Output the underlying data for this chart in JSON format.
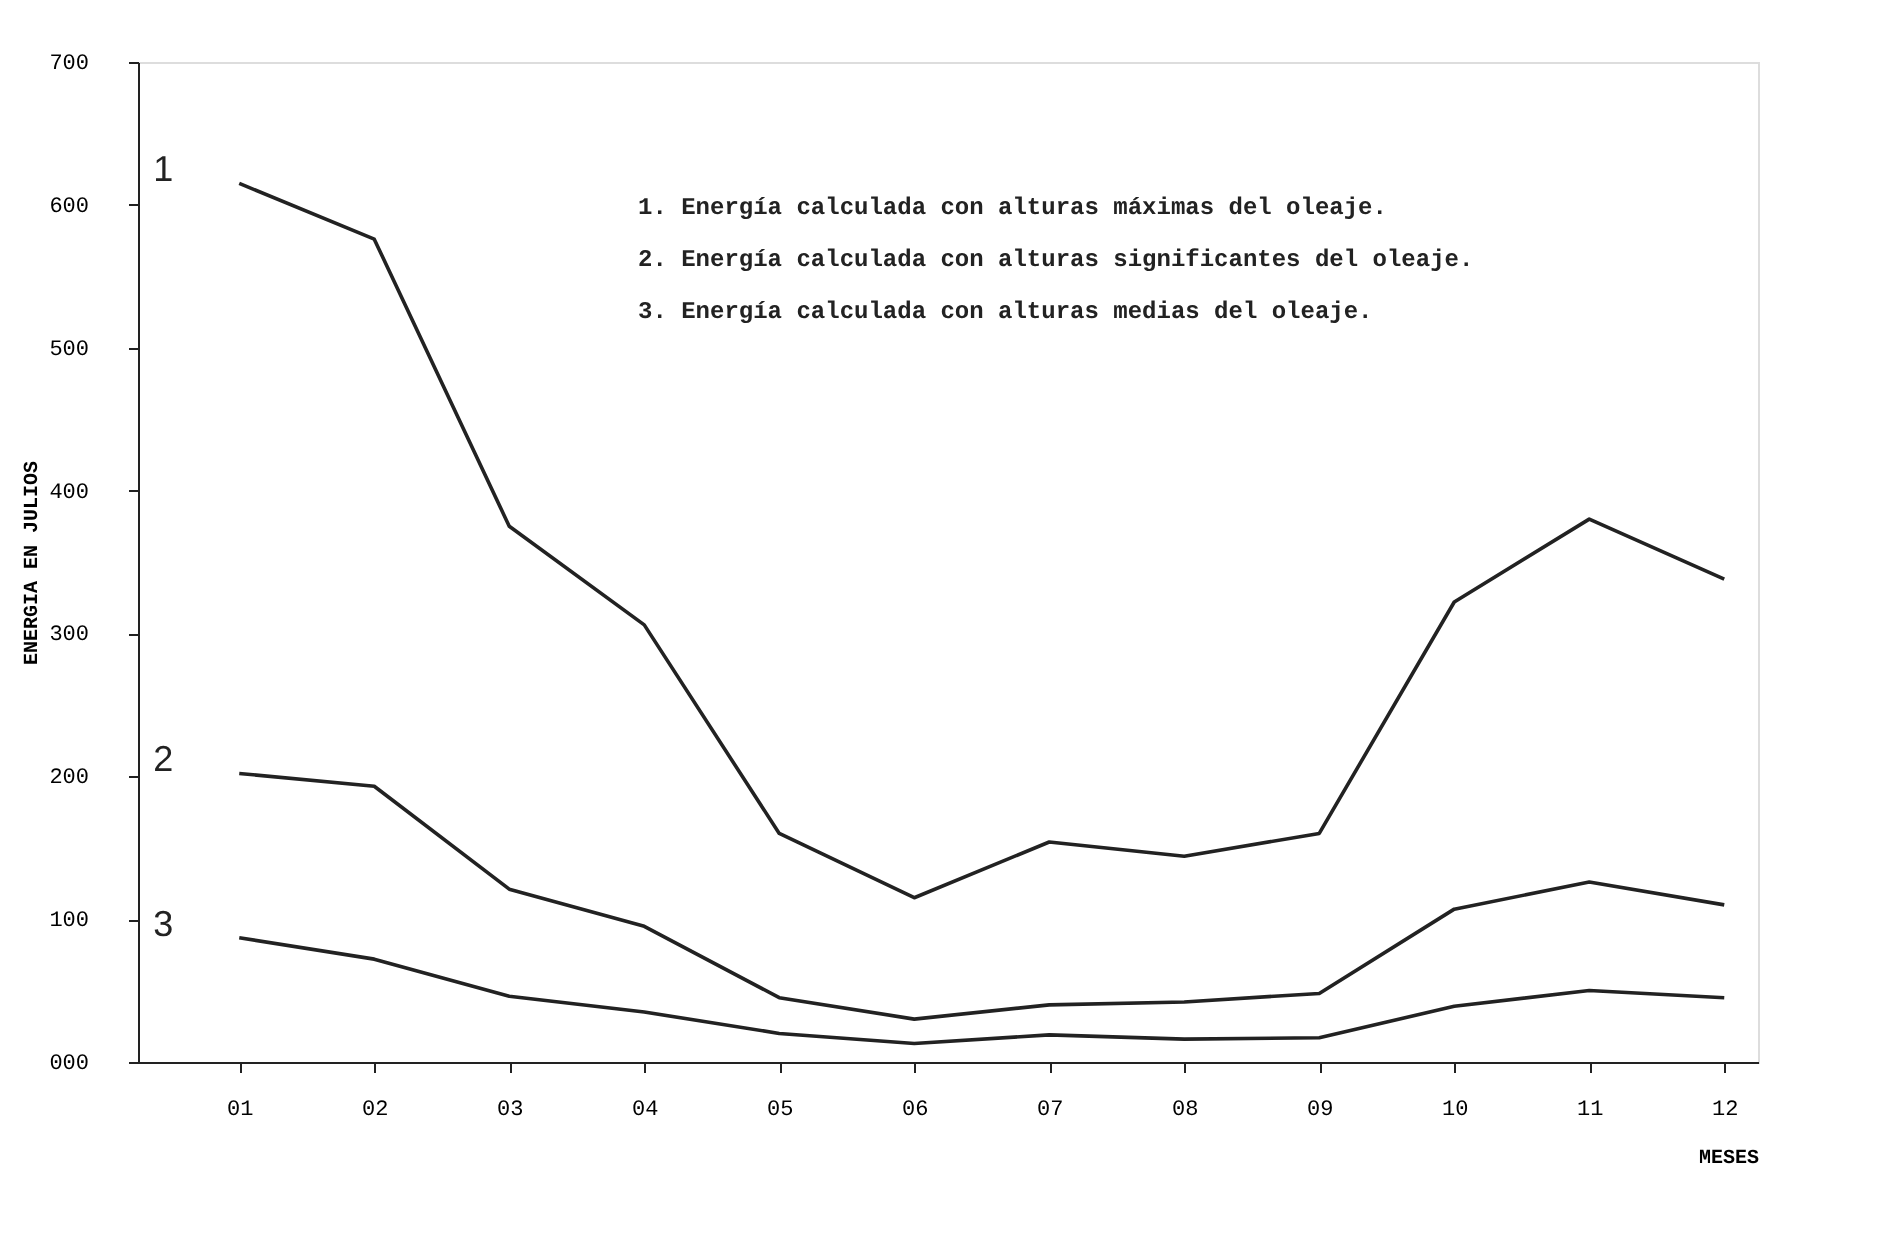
{
  "chart_data": {
    "type": "line",
    "categories": [
      "01",
      "02",
      "03",
      "04",
      "05",
      "06",
      "07",
      "08",
      "09",
      "10",
      "11",
      "12"
    ],
    "series": [
      {
        "name": "1",
        "color": "#222222",
        "values": [
          615,
          576,
          375,
          306,
          160,
          115,
          154,
          144,
          160,
          322,
          380,
          338
        ]
      },
      {
        "name": "2",
        "color": "#222222",
        "values": [
          202,
          193,
          121,
          95,
          45,
          30,
          40,
          42,
          48,
          107,
          126,
          110
        ]
      },
      {
        "name": "3",
        "color": "#222222",
        "values": [
          87,
          72,
          46,
          35,
          20,
          13,
          19,
          16,
          17,
          39,
          50,
          45
        ]
      }
    ],
    "ylim": [
      0,
      700
    ],
    "yticks": [
      {
        "value": 0,
        "label": "000"
      },
      100,
      200,
      300,
      400,
      500,
      600,
      700
    ],
    "xlabel": "MESES",
    "ylabel": "ENERGIA EN JULIOS",
    "annotations": [
      "1. Energía calculada con alturas máximas del oleaje.",
      "2. Energía calculada con alturas significantes del oleaje.",
      "3. Energía calculada con alturas medias del oleaje."
    ],
    "grid": false,
    "marker": "none",
    "line_style": "solid"
  }
}
